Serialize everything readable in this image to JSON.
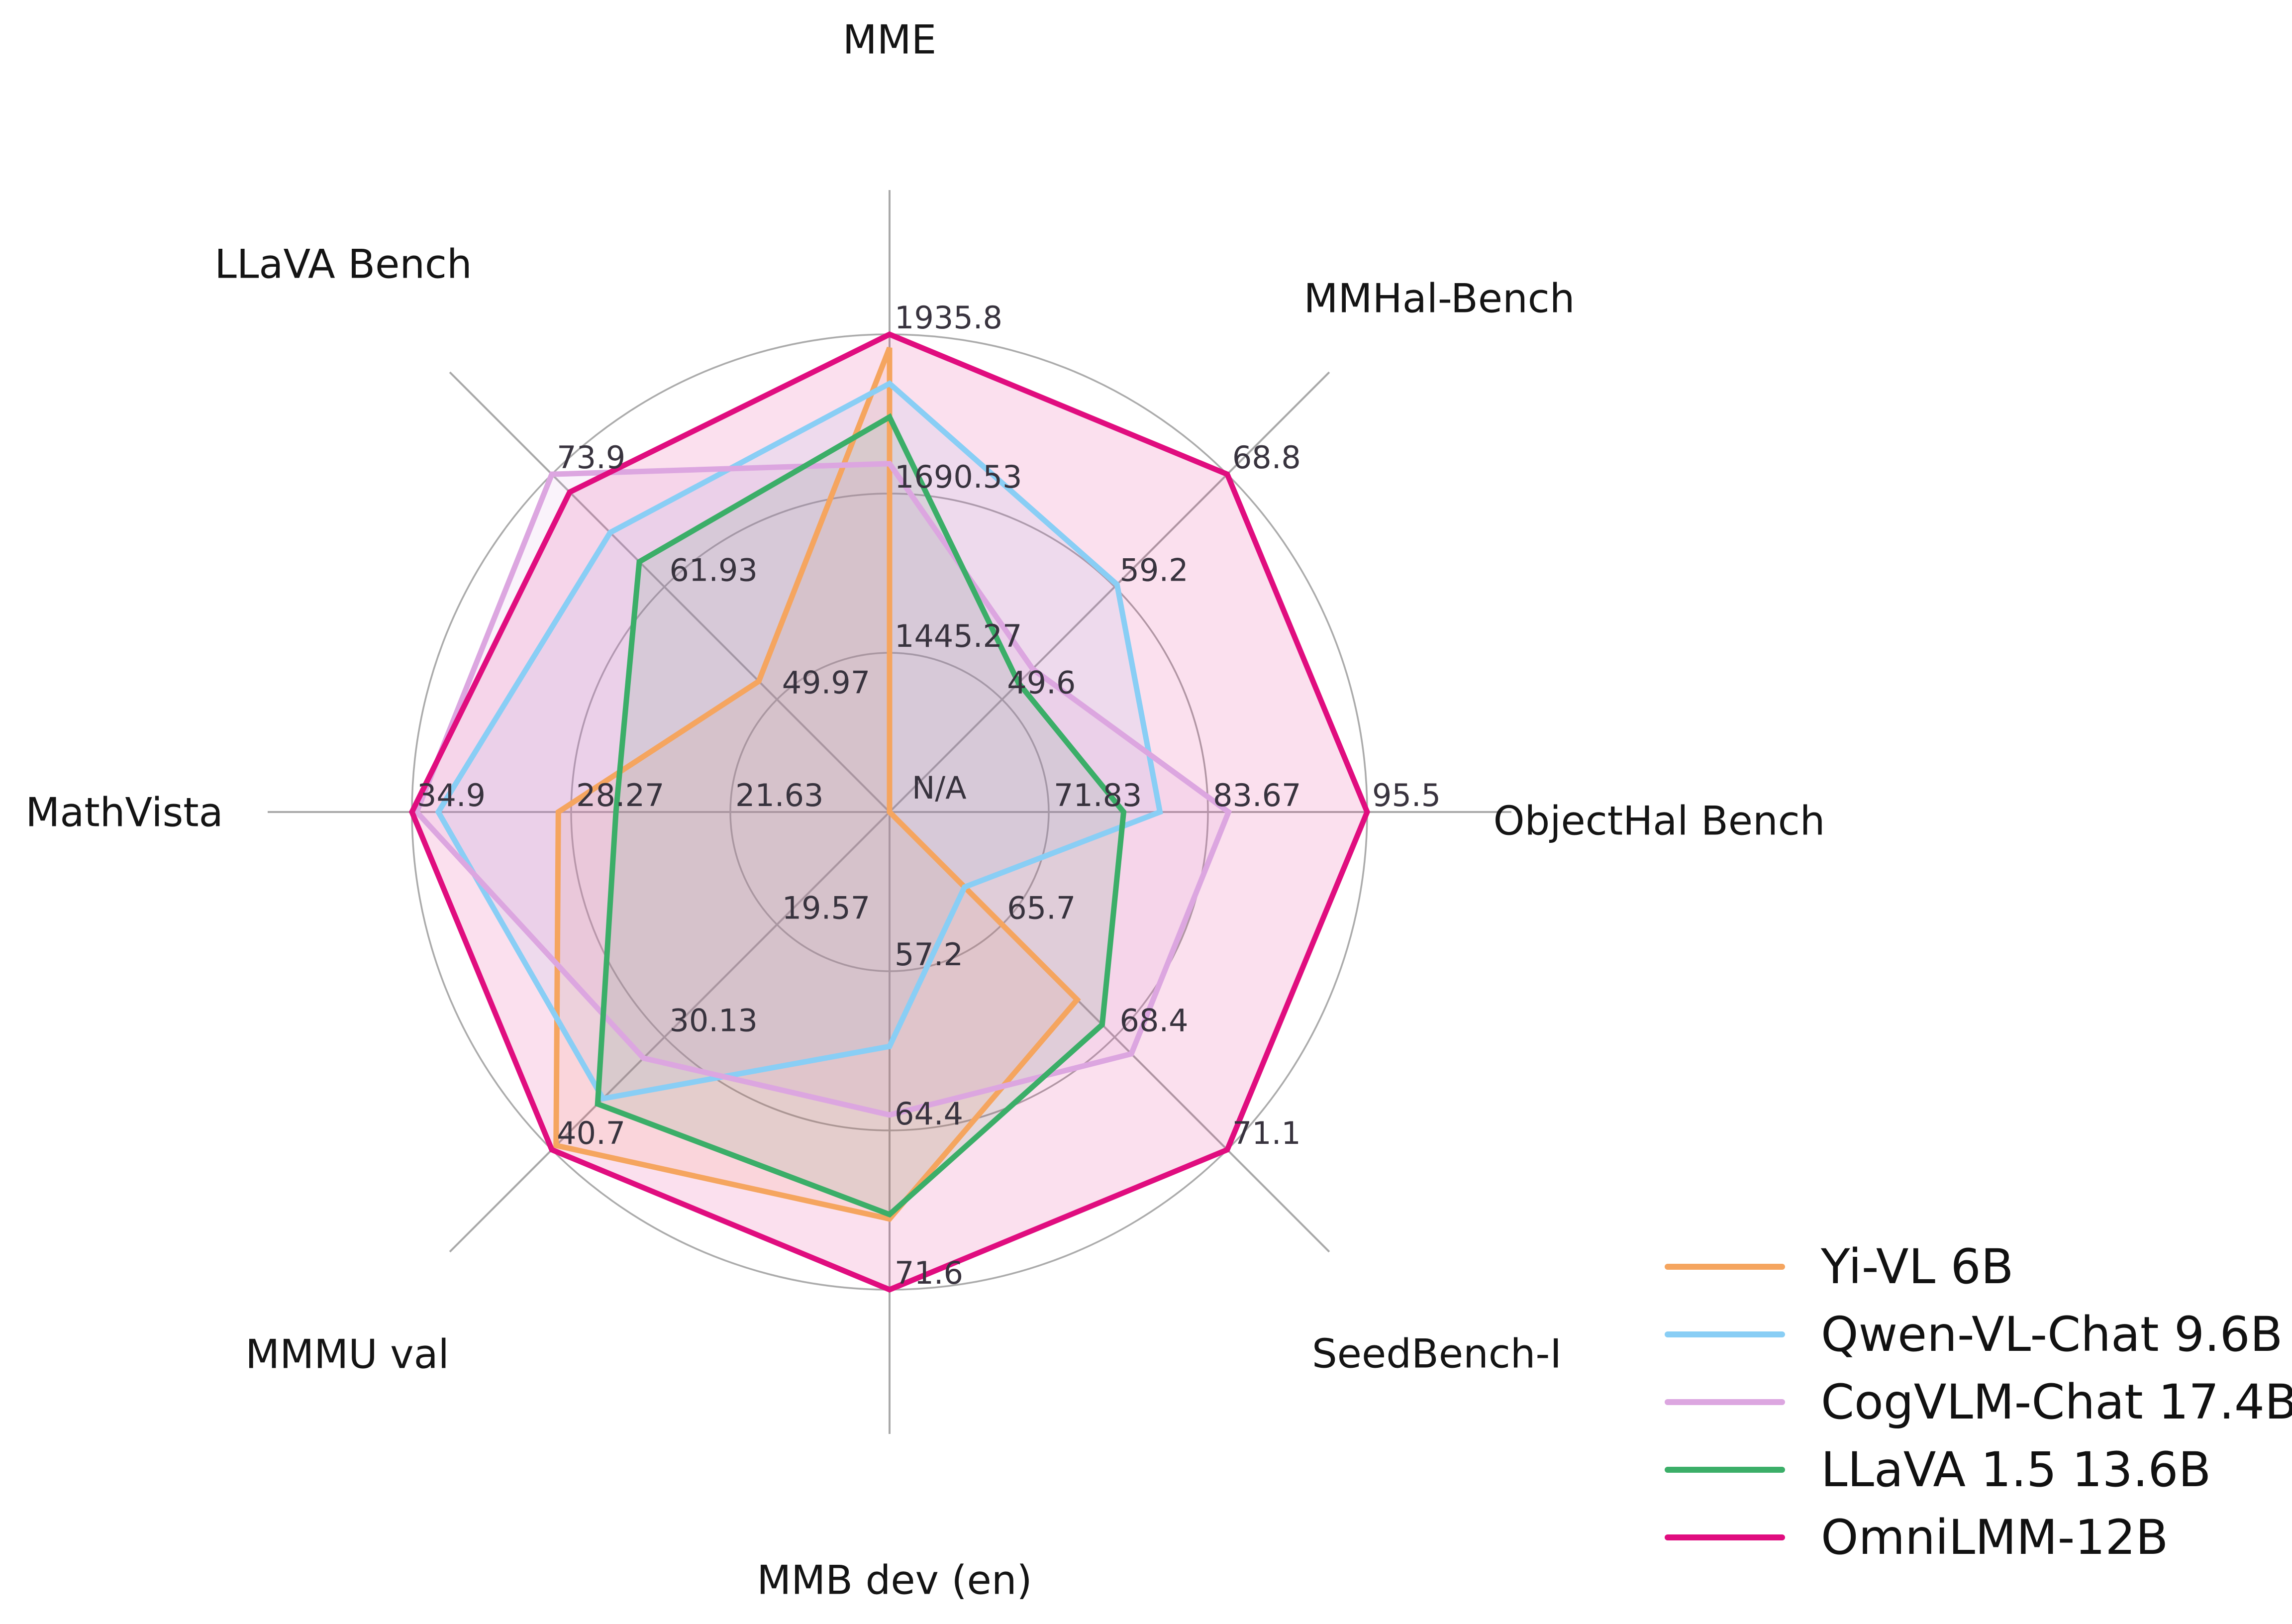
{
  "chart_data": {
    "type": "radar",
    "center_label": "N/A",
    "categories": [
      {
        "label": "MME",
        "min": 1200,
        "max": 1935.8,
        "ticks": [
          "1445.27",
          "1690.53",
          "1935.8"
        ]
      },
      {
        "label": "MMHal-Bench",
        "min": 40,
        "max": 68.8,
        "ticks": [
          "49.6",
          "59.2",
          "68.8"
        ]
      },
      {
        "label": "ObjectHal Bench",
        "min": 60,
        "max": 95.5,
        "ticks": [
          "71.83",
          "83.67",
          "95.5"
        ]
      },
      {
        "label": "SeedBench-I",
        "min": 63,
        "max": 71.1,
        "ticks": [
          "65.7",
          "68.4",
          "71.1"
        ]
      },
      {
        "label": "MMB dev (en)",
        "min": 50,
        "max": 71.6,
        "ticks": [
          "57.2",
          "64.4",
          "71.6"
        ]
      },
      {
        "label": "MMMU val",
        "min": 9,
        "max": 40.7,
        "ticks": [
          "19.57",
          "30.13",
          "40.7"
        ]
      },
      {
        "label": "MathVista",
        "min": 15,
        "max": 34.9,
        "ticks": [
          "21.63",
          "28.27",
          "34.9"
        ]
      },
      {
        "label": "LLaVA Bench",
        "min": 38,
        "max": 73.9,
        "ticks": [
          "49.97",
          "61.93",
          "73.9"
        ]
      }
    ],
    "series": [
      {
        "name": "Yi-VL 6B",
        "color": "#F5A55F",
        "values": [
          1915.1,
          null,
          null,
          67.5,
          68.4,
          40.3,
          28.8,
          51.9
        ]
      },
      {
        "name": "Qwen-VL-Chat 9.6B",
        "color": "#89CEF5",
        "values": [
          1860.0,
          59.4,
          80.1,
          64.8,
          60.6,
          35.9,
          33.8,
          67.7
        ]
      },
      {
        "name": "CogVLM-Chat 17.4B",
        "color": "#DCA6E0",
        "values": [
          1736.6,
          52.2,
          85.2,
          68.8,
          63.7,
          32.1,
          34.7,
          73.9
        ]
      },
      {
        "name": "LLaVA 1.5 13.6B",
        "color": "#3BAE68",
        "values": [
          1808.4,
          51.0,
          77.4,
          68.1,
          68.2,
          36.4,
          26.4,
          64.6
        ]
      },
      {
        "name": "OmniLMM-12B",
        "color": "#E00D7F",
        "values": [
          1935.8,
          68.8,
          95.5,
          71.1,
          71.6,
          40.7,
          34.9,
          72.0
        ]
      }
    ],
    "legend_position": "lower right",
    "grid": "on",
    "styles": {
      "grid_color": "#ABABAB",
      "spoke_color": "#A9A9A9",
      "tick_label_color": "#38333E",
      "category_label_color": "#141414",
      "fill_opacity": "0.13",
      "line_width": "11"
    }
  }
}
